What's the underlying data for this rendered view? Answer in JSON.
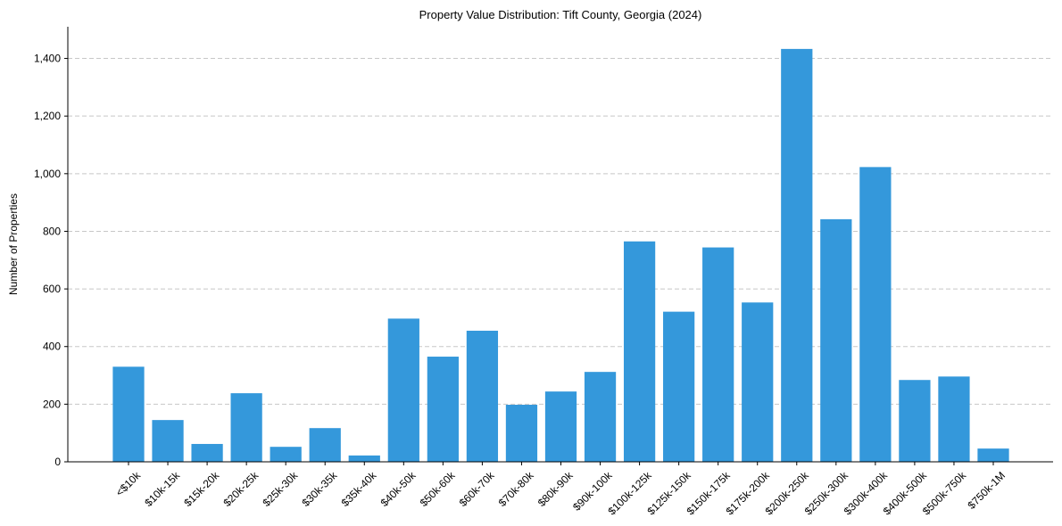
{
  "chart_data": {
    "type": "bar",
    "title": "Property Value Distribution: Tift County, Georgia (2024)",
    "xlabel": "",
    "ylabel": "Number of Properties",
    "categories": [
      "<$10k",
      "$10k-15k",
      "$15k-20k",
      "$20k-25k",
      "$25k-30k",
      "$30k-35k",
      "$35k-40k",
      "$40k-50k",
      "$50k-60k",
      "$60k-70k",
      "$70k-80k",
      "$80k-90k",
      "$90k-100k",
      "$100k-125k",
      "$125k-150k",
      "$150k-175k",
      "$175k-200k",
      "$200k-250k",
      "$250k-300k",
      "$300k-400k",
      "$400k-500k",
      "$500k-750k",
      "$750k-1M"
    ],
    "values": [
      330,
      145,
      62,
      238,
      52,
      117,
      22,
      497,
      365,
      455,
      198,
      244,
      312,
      765,
      521,
      744,
      553,
      1433,
      842,
      1023,
      284,
      296,
      46
    ],
    "ylim": [
      0,
      1510
    ],
    "yticks": [
      0,
      200,
      400,
      600,
      800,
      1000,
      1200,
      1400
    ],
    "ytick_labels": [
      "0",
      "200",
      "400",
      "600",
      "800",
      "1,000",
      "1,200",
      "1,400"
    ],
    "grid": "y-dashed",
    "bar_color": "#3498db"
  }
}
